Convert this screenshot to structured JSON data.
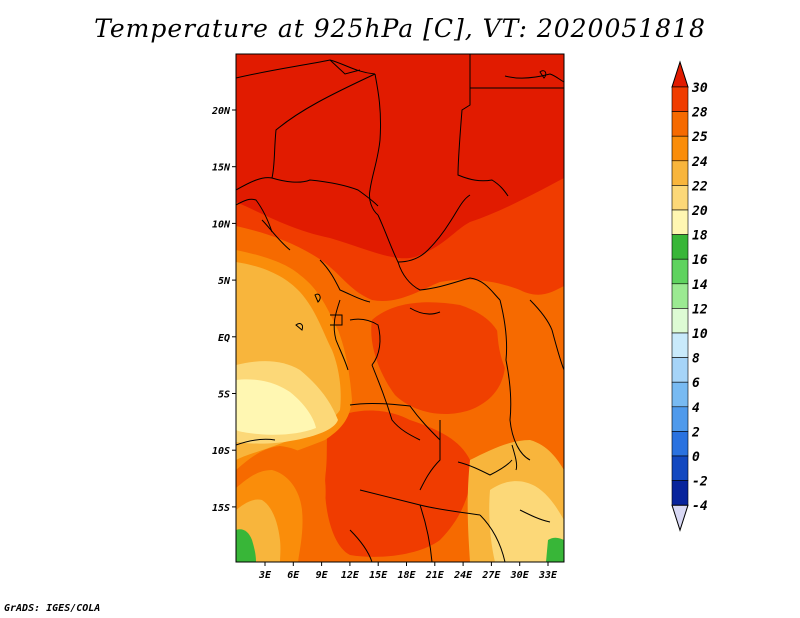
{
  "title": "Temperature at 925hPa [C], VT: 2020051818",
  "credit": "GrADS: IGES/COLA",
  "map": {
    "lat_labels": [
      "20N",
      "15N",
      "10N",
      "5N",
      "EQ",
      "5S",
      "10S",
      "15S"
    ],
    "lon_labels": [
      "3E",
      "6E",
      "9E",
      "12E",
      "15E",
      "18E",
      "21E",
      "24E",
      "27E",
      "30E",
      "33E"
    ]
  },
  "colorbar": {
    "labels": [
      "30",
      "28",
      "25",
      "24",
      "22",
      "20",
      "18",
      "16",
      "14",
      "12",
      "10",
      "8",
      "6",
      "4",
      "2",
      "0",
      "-2",
      "-4"
    ],
    "colors": [
      "#e11b00",
      "#f03c00",
      "#f66a00",
      "#fa8d0a",
      "#f8b53c",
      "#fcd878",
      "#fff7b2",
      "#38b638",
      "#5fd35f",
      "#9bea92",
      "#ddfbd4",
      "#c9eafb",
      "#a6d4f8",
      "#78baf2",
      "#4f9aec",
      "#2a72e0",
      "#1248c0",
      "#08249c",
      "#001a70"
    ],
    "top_color": "#e11b00",
    "bottom_color": "#d8d8f4"
  }
}
